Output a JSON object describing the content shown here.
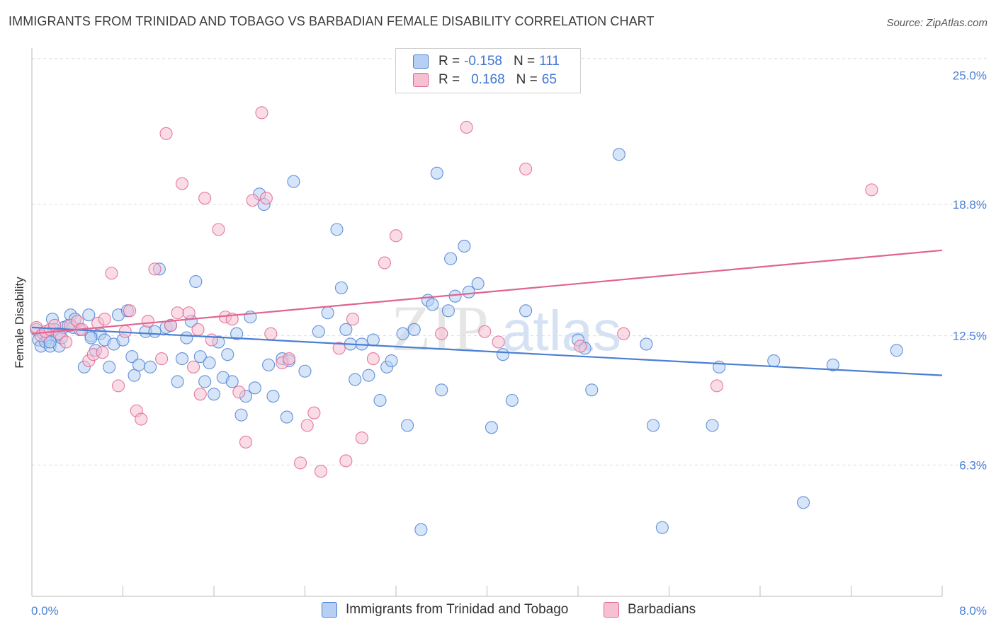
{
  "header": {
    "title": "IMMIGRANTS FROM TRINIDAD AND TOBAGO VS BARBADIAN FEMALE DISABILITY CORRELATION CHART",
    "source": "Source: ZipAtlas.com"
  },
  "legend": {
    "series1": {
      "r_label": "R =",
      "r_value": "-0.158",
      "n_label": "N =",
      "n_value": "111"
    },
    "series2": {
      "r_label": "R =",
      "r_value": "0.168",
      "n_label": "N =",
      "n_value": "65"
    }
  },
  "watermark": {
    "zip": "ZIP",
    "atlas": "atlas"
  },
  "colors": {
    "blue": "#4a7fd4",
    "blue_fill": "#b7cff2",
    "pink": "#e0648f",
    "pink_fill": "#f6c0d2"
  },
  "chart_data": {
    "type": "scatter",
    "title": "IMMIGRANTS FROM TRINIDAD AND TOBAGO VS BARBADIAN FEMALE DISABILITY CORRELATION CHART",
    "xlabel": "",
    "ylabel": "Female Disability",
    "xlim": [
      0,
      8.0
    ],
    "ylim": [
      0,
      26.3
    ],
    "x_tick_labels": [
      "0.0%",
      "8.0%"
    ],
    "y_ticks": [
      6.3,
      12.5,
      18.8,
      25.0
    ],
    "y_tick_labels": [
      "6.3%",
      "12.5%",
      "18.8%",
      "25.0%"
    ],
    "grid": true,
    "legend_position": "bottom-center",
    "series": [
      {
        "name": "Immigrants from Trinidad and Tobago",
        "color": "#4a7fd4",
        "trend": {
          "x": [
            0,
            8.0
          ],
          "y": [
            12.9,
            10.6
          ]
        },
        "points": [
          [
            0.04,
            12.8
          ],
          [
            0.06,
            12.3
          ],
          [
            0.08,
            12.0
          ],
          [
            0.1,
            12.6
          ],
          [
            0.12,
            12.2
          ],
          [
            0.14,
            12.4
          ],
          [
            0.16,
            12.0
          ],
          [
            0.18,
            13.3
          ],
          [
            0.2,
            12.8
          ],
          [
            0.22,
            12.5
          ],
          [
            0.24,
            12.0
          ],
          [
            0.26,
            12.4
          ],
          [
            0.28,
            12.9
          ],
          [
            0.32,
            13.0
          ],
          [
            0.34,
            13.5
          ],
          [
            0.36,
            12.9
          ],
          [
            0.38,
            13.3
          ],
          [
            0.42,
            12.8
          ],
          [
            0.46,
            11.0
          ],
          [
            0.5,
            13.5
          ],
          [
            0.52,
            12.5
          ],
          [
            0.56,
            11.8
          ],
          [
            0.6,
            12.6
          ],
          [
            0.64,
            12.3
          ],
          [
            0.68,
            11.0
          ],
          [
            0.72,
            12.1
          ],
          [
            0.76,
            13.5
          ],
          [
            0.8,
            12.3
          ],
          [
            0.84,
            13.7
          ],
          [
            0.88,
            11.5
          ],
          [
            0.9,
            10.6
          ],
          [
            0.94,
            11.1
          ],
          [
            1.0,
            12.7
          ],
          [
            1.04,
            11.0
          ],
          [
            1.08,
            12.7
          ],
          [
            1.12,
            15.7
          ],
          [
            1.18,
            12.9
          ],
          [
            1.22,
            13.0
          ],
          [
            1.28,
            10.3
          ],
          [
            1.32,
            11.4
          ],
          [
            1.36,
            12.4
          ],
          [
            1.4,
            13.2
          ],
          [
            1.44,
            15.1
          ],
          [
            1.48,
            11.5
          ],
          [
            1.52,
            10.3
          ],
          [
            1.56,
            11.2
          ],
          [
            1.6,
            9.7
          ],
          [
            1.64,
            12.2
          ],
          [
            1.68,
            10.5
          ],
          [
            1.72,
            11.6
          ],
          [
            1.76,
            10.3
          ],
          [
            1.8,
            12.6
          ],
          [
            1.84,
            8.7
          ],
          [
            1.88,
            9.6
          ],
          [
            1.92,
            13.4
          ],
          [
            1.96,
            10.0
          ],
          [
            2.0,
            19.3
          ],
          [
            2.04,
            18.8
          ],
          [
            2.08,
            11.1
          ],
          [
            2.12,
            9.6
          ],
          [
            2.2,
            11.4
          ],
          [
            2.24,
            8.6
          ],
          [
            2.26,
            11.3
          ],
          [
            2.3,
            19.9
          ],
          [
            2.4,
            10.8
          ],
          [
            2.52,
            12.7
          ],
          [
            2.6,
            13.6
          ],
          [
            2.68,
            17.6
          ],
          [
            2.72,
            14.8
          ],
          [
            2.76,
            12.8
          ],
          [
            2.8,
            12.1
          ],
          [
            2.84,
            10.4
          ],
          [
            2.9,
            12.1
          ],
          [
            2.96,
            10.6
          ],
          [
            3.0,
            12.3
          ],
          [
            3.06,
            9.4
          ],
          [
            3.12,
            11.0
          ],
          [
            3.16,
            11.3
          ],
          [
            3.26,
            12.6
          ],
          [
            3.3,
            8.2
          ],
          [
            3.36,
            12.8
          ],
          [
            3.42,
            3.2
          ],
          [
            3.48,
            14.2
          ],
          [
            3.52,
            14.0
          ],
          [
            3.56,
            20.3
          ],
          [
            3.6,
            9.9
          ],
          [
            3.66,
            13.7
          ],
          [
            3.68,
            16.2
          ],
          [
            3.72,
            14.4
          ],
          [
            3.8,
            16.8
          ],
          [
            3.84,
            14.6
          ],
          [
            3.92,
            15.0
          ],
          [
            4.04,
            8.1
          ],
          [
            4.14,
            11.6
          ],
          [
            4.22,
            9.4
          ],
          [
            4.34,
            13.7
          ],
          [
            4.8,
            12.3
          ],
          [
            4.86,
            11.9
          ],
          [
            4.92,
            9.9
          ],
          [
            5.16,
            21.2
          ],
          [
            5.4,
            12.1
          ],
          [
            5.46,
            8.2
          ],
          [
            5.54,
            3.3
          ],
          [
            5.98,
            8.2
          ],
          [
            6.04,
            11.0
          ],
          [
            6.52,
            11.3
          ],
          [
            6.78,
            4.5
          ],
          [
            7.04,
            11.1
          ],
          [
            7.6,
            11.8
          ],
          [
            0.16,
            12.2
          ],
          [
            0.52,
            12.4
          ]
        ]
      },
      {
        "name": "Barbadians",
        "color": "#e0648f",
        "trend": {
          "x": [
            0,
            8.0
          ],
          "y": [
            12.6,
            16.6
          ]
        },
        "points": [
          [
            0.04,
            12.9
          ],
          [
            0.08,
            12.5
          ],
          [
            0.12,
            12.7
          ],
          [
            0.16,
            12.8
          ],
          [
            0.2,
            13.0
          ],
          [
            0.24,
            12.6
          ],
          [
            0.3,
            12.2
          ],
          [
            0.34,
            13.0
          ],
          [
            0.4,
            13.2
          ],
          [
            0.44,
            12.8
          ],
          [
            0.5,
            11.3
          ],
          [
            0.54,
            11.6
          ],
          [
            0.58,
            13.1
          ],
          [
            0.64,
            13.3
          ],
          [
            0.7,
            15.5
          ],
          [
            0.76,
            10.1
          ],
          [
            0.82,
            12.7
          ],
          [
            0.86,
            13.7
          ],
          [
            0.92,
            8.9
          ],
          [
            0.96,
            8.5
          ],
          [
            1.02,
            13.2
          ],
          [
            1.08,
            15.7
          ],
          [
            1.14,
            11.4
          ],
          [
            1.18,
            22.2
          ],
          [
            1.22,
            13.0
          ],
          [
            1.28,
            13.6
          ],
          [
            1.32,
            19.8
          ],
          [
            1.38,
            13.6
          ],
          [
            1.42,
            11.0
          ],
          [
            1.48,
            9.7
          ],
          [
            1.52,
            19.1
          ],
          [
            1.58,
            12.3
          ],
          [
            1.64,
            17.6
          ],
          [
            1.7,
            13.4
          ],
          [
            1.76,
            13.3
          ],
          [
            1.82,
            9.8
          ],
          [
            1.88,
            7.4
          ],
          [
            1.94,
            19.0
          ],
          [
            2.02,
            23.2
          ],
          [
            2.1,
            12.6
          ],
          [
            2.2,
            11.2
          ],
          [
            2.26,
            11.4
          ],
          [
            2.36,
            6.4
          ],
          [
            2.42,
            8.2
          ],
          [
            2.48,
            8.8
          ],
          [
            2.54,
            6.0
          ],
          [
            2.7,
            11.9
          ],
          [
            2.76,
            6.5
          ],
          [
            2.82,
            13.3
          ],
          [
            2.9,
            7.6
          ],
          [
            3.0,
            11.4
          ],
          [
            3.1,
            16.0
          ],
          [
            3.2,
            17.3
          ],
          [
            3.6,
            12.6
          ],
          [
            3.82,
            22.5
          ],
          [
            3.98,
            12.7
          ],
          [
            4.1,
            12.2
          ],
          [
            4.34,
            20.5
          ],
          [
            4.82,
            12.0
          ],
          [
            5.2,
            12.6
          ],
          [
            6.02,
            10.1
          ],
          [
            7.38,
            19.5
          ],
          [
            0.62,
            11.7
          ],
          [
            1.46,
            12.8
          ],
          [
            2.06,
            19.1
          ]
        ]
      }
    ]
  }
}
